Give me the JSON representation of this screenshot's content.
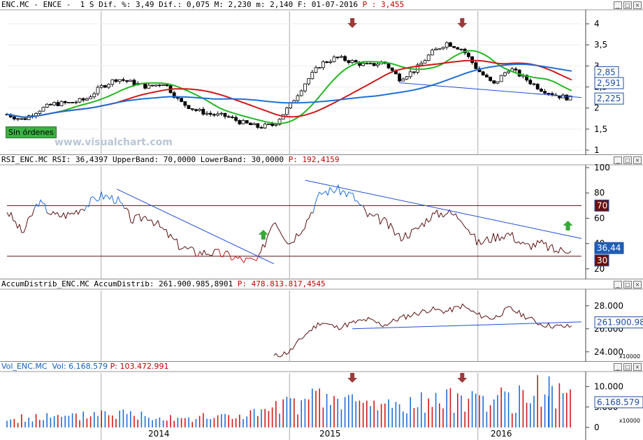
{
  "header": {
    "price_text": "ENC.MC - ENCE -  1 S Dif. %: 3,49 Dif.: 0,075 M: 2,230 m: 2,140 F: 01-07-2016",
    "price_p": "P : 3,455",
    "rsi_text": "RSI_ENC.MC RSI: 36,4397 UpperBand: 70,0000 LowerBand: 30,0000",
    "rsi_p": "P: 192,4159",
    "acc_text": "AccumDistrib_ENC.MC AccumDistrib: 261.900.985,8901",
    "acc_p": "P: 478.813.817,4545",
    "vol_text": "Vol_ENC.MC  Vol: 6.168.579",
    "vol_p": "P: 103.472.991"
  },
  "watermark": "www.visualchart.com",
  "sin_ordenes": "Sin órdenes",
  "x_axis": {
    "labels": [
      "2014",
      "2015",
      "2016"
    ]
  },
  "multiplier": "x10000",
  "colors": {
    "sma_green": "#22b822",
    "sma_red": "#d01818",
    "sma_blue": "#1f6fd8",
    "rsi_up": "#1f6fd8",
    "rsi_mid": "#5a1010",
    "rsi_down": "#d01818",
    "trend": "#1f4fd8",
    "arrow": "#9b3b3b",
    "up_arrow": "#38a838"
  },
  "chart_data": [
    {
      "type": "candlestick",
      "name": "ENC.MC",
      "y_ticks": [
        "4",
        "3,5",
        "3",
        "2,5",
        "2",
        "1,5",
        "1"
      ],
      "ylim": [
        1,
        4.2
      ],
      "price_tags": [
        {
          "label": "2,85",
          "value": 2.85
        },
        {
          "label": "2,591",
          "value": 2.591
        },
        {
          "label": "2,225",
          "value": 2.225
        }
      ],
      "arrows": [
        "2015-05",
        "2015-12"
      ],
      "series": [
        {
          "name": "close",
          "points": [
            [
              "2013-07",
              1.85
            ],
            [
              "2013-08",
              1.72
            ],
            [
              "2013-09",
              1.95
            ],
            [
              "2013-10",
              2.1
            ],
            [
              "2013-11",
              2.12
            ],
            [
              "2013-12",
              2.2
            ],
            [
              "2014-01",
              2.5
            ],
            [
              "2014-02",
              2.7
            ],
            [
              "2014-03",
              2.6
            ],
            [
              "2014-04",
              2.5
            ],
            [
              "2014-05",
              2.6
            ],
            [
              "2014-06",
              2.15
            ],
            [
              "2014-07",
              1.95
            ],
            [
              "2014-08",
              1.85
            ],
            [
              "2014-09",
              1.8
            ],
            [
              "2014-10",
              1.65
            ],
            [
              "2014-11",
              1.55
            ],
            [
              "2014-12",
              1.6
            ],
            [
              "2015-01",
              2.05
            ],
            [
              "2015-02",
              2.6
            ],
            [
              "2015-03",
              3.05
            ],
            [
              "2015-04",
              3.2
            ],
            [
              "2015-05",
              3.1
            ],
            [
              "2015-06",
              3.0
            ],
            [
              "2015-07",
              3.1
            ],
            [
              "2015-08",
              2.7
            ],
            [
              "2015-09",
              2.9
            ],
            [
              "2015-10",
              3.3
            ],
            [
              "2015-11",
              3.55
            ],
            [
              "2015-12",
              3.4
            ],
            [
              "2016-01",
              2.9
            ],
            [
              "2016-02",
              2.55
            ],
            [
              "2016-03",
              2.95
            ],
            [
              "2016-04",
              2.7
            ],
            [
              "2016-05",
              2.45
            ],
            [
              "2016-06",
              2.3
            ],
            [
              "2016-07",
              2.22
            ]
          ]
        }
      ]
    },
    {
      "type": "line",
      "name": "RSI",
      "y_ticks": [
        "100",
        "80",
        "60",
        "40",
        "20"
      ],
      "ylim": [
        15,
        100
      ],
      "bands": [
        70,
        30
      ],
      "tags": [
        {
          "label": "70",
          "value": 70
        },
        {
          "label": "36,44",
          "value": 36.44
        },
        {
          "label": "30",
          "value": 30
        }
      ],
      "series": [
        {
          "name": "RSI",
          "points": [
            [
              "2013-07",
              66
            ],
            [
              "2013-08",
              48
            ],
            [
              "2013-09",
              73
            ],
            [
              "2013-10",
              62
            ],
            [
              "2013-11",
              63
            ],
            [
              "2013-12",
              70
            ],
            [
              "2014-01",
              78
            ],
            [
              "2014-02",
              75
            ],
            [
              "2014-03",
              58
            ],
            [
              "2014-04",
              62
            ],
            [
              "2014-05",
              50
            ],
            [
              "2014-06",
              38
            ],
            [
              "2014-07",
              33
            ],
            [
              "2014-08",
              33
            ],
            [
              "2014-09",
              31
            ],
            [
              "2014-10",
              27
            ],
            [
              "2014-11",
              26
            ],
            [
              "2014-12",
              60
            ],
            [
              "2015-01",
              40
            ],
            [
              "2015-02",
              56
            ],
            [
              "2015-03",
              80
            ],
            [
              "2015-04",
              83
            ],
            [
              "2015-05",
              78
            ],
            [
              "2015-06",
              62
            ],
            [
              "2015-07",
              58
            ],
            [
              "2015-08",
              45
            ],
            [
              "2015-09",
              50
            ],
            [
              "2015-10",
              62
            ],
            [
              "2015-11",
              65
            ],
            [
              "2015-12",
              60
            ],
            [
              "2016-01",
              40
            ],
            [
              "2016-02",
              45
            ],
            [
              "2016-03",
              48
            ],
            [
              "2016-04",
              38
            ],
            [
              "2016-05",
              40
            ],
            [
              "2016-06",
              34
            ],
            [
              "2016-07",
              36.44
            ]
          ]
        }
      ]
    },
    {
      "type": "line",
      "name": "AccumDistrib",
      "y_ticks": [
        "28.000",
        "26.000",
        "24.000"
      ],
      "ylim": [
        23500,
        29200
      ],
      "tags": [
        {
          "label": "261.900.985",
          "value": 26190
        }
      ],
      "series": [
        {
          "name": "AccumDistrib",
          "points": [
            [
              "2014-12",
              23600
            ],
            [
              "2015-01",
              24000
            ],
            [
              "2015-02",
              25500
            ],
            [
              "2015-03",
              26600
            ],
            [
              "2015-04",
              26100
            ],
            [
              "2015-05",
              26500
            ],
            [
              "2015-06",
              26800
            ],
            [
              "2015-07",
              26300
            ],
            [
              "2015-08",
              26900
            ],
            [
              "2015-09",
              27300
            ],
            [
              "2015-10",
              27700
            ],
            [
              "2015-11",
              27500
            ],
            [
              "2015-12",
              28000
            ],
            [
              "2016-01",
              27200
            ],
            [
              "2016-02",
              26900
            ],
            [
              "2016-03",
              27800
            ],
            [
              "2016-04",
              27100
            ],
            [
              "2016-05",
              26400
            ],
            [
              "2016-06",
              26200
            ],
            [
              "2016-07",
              26190
            ]
          ]
        }
      ]
    },
    {
      "type": "bar",
      "name": "Vol",
      "y_ticks": [
        "10.000",
        "5.000",
        "0"
      ],
      "ylim": [
        0,
        13000
      ],
      "tags": [
        {
          "label": "6.168.579",
          "value": 6168
        }
      ],
      "arrows": [
        "2015-05",
        "2015-12"
      ],
      "series": [
        {
          "name": "Vol",
          "points": [
            [
              "2013-07",
              1800
            ],
            [
              "2013-09",
              2600
            ],
            [
              "2013-11",
              2300
            ],
            [
              "2014-01",
              3800
            ],
            [
              "2014-03",
              3200
            ],
            [
              "2014-05",
              2900
            ],
            [
              "2014-07",
              2300
            ],
            [
              "2014-09",
              2700
            ],
            [
              "2014-11",
              3400
            ],
            [
              "2015-01",
              5400
            ],
            [
              "2015-03",
              6800
            ],
            [
              "2015-05",
              6200
            ],
            [
              "2015-07",
              5200
            ],
            [
              "2015-09",
              5800
            ],
            [
              "2015-11",
              6300
            ],
            [
              "2016-01",
              7600
            ],
            [
              "2016-03",
              6200
            ],
            [
              "2016-05",
              9000
            ],
            [
              "2016-07",
              6168
            ]
          ]
        }
      ]
    }
  ]
}
